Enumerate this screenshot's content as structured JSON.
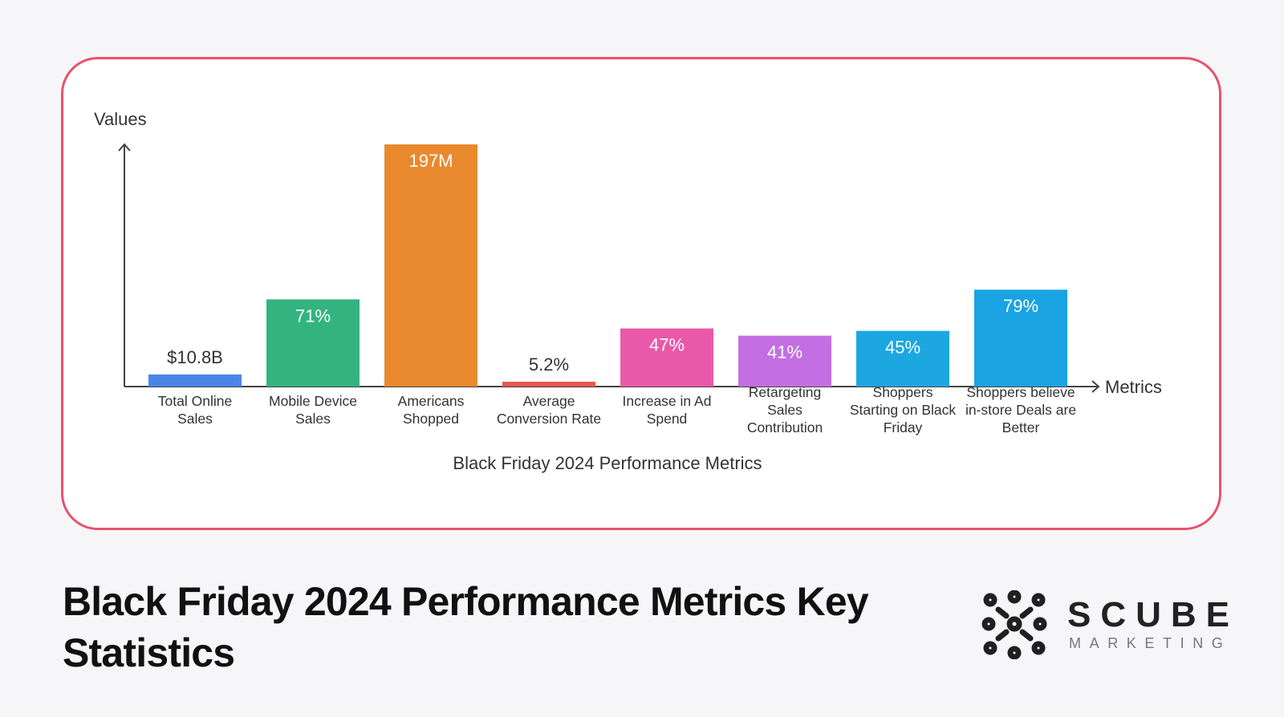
{
  "page": {
    "title": "Black Friday 2024 Performance Metrics Key Statistics"
  },
  "logo": {
    "name": "SCUBE",
    "subtitle": "MARKETING"
  },
  "colors": {
    "border": "#e8526d",
    "axis": "#444444",
    "text": "#333333"
  },
  "chart_data": {
    "type": "bar",
    "title": "Black Friday 2024 Performance Metrics",
    "xlabel": "Metrics",
    "ylabel": "Values",
    "grid": false,
    "legend": "none",
    "bars": [
      {
        "label": [
          "Total Online",
          "Sales"
        ],
        "value_label": "$10.8B",
        "level": 0.05,
        "color": "#4a86e8",
        "label_inside": false
      },
      {
        "label": [
          "Mobile Device",
          "Sales"
        ],
        "value_label": "71%",
        "level": 0.36,
        "color": "#33b47f",
        "label_inside": true
      },
      {
        "label": [
          "Americans",
          "Shopped"
        ],
        "value_label": "197M",
        "level": 1.0,
        "color": "#e9892d",
        "label_inside": true
      },
      {
        "label": [
          "Average",
          "Conversion Rate"
        ],
        "value_label": "5.2%",
        "level": 0.02,
        "color": "#e8574f",
        "label_inside": false
      },
      {
        "label": [
          "Increase in Ad",
          "Spend"
        ],
        "value_label": "47%",
        "level": 0.24,
        "color": "#e959a9",
        "label_inside": true
      },
      {
        "label": [
          "Retargeting",
          "Sales",
          "Contribution"
        ],
        "value_label": "41%",
        "level": 0.21,
        "color": "#c36fe3",
        "label_inside": true
      },
      {
        "label": [
          "Shoppers",
          "Starting on Black",
          "Friday"
        ],
        "value_label": "45%",
        "level": 0.23,
        "color": "#1da7e1",
        "label_inside": true
      },
      {
        "label": [
          "Shoppers believe",
          "in-store Deals are",
          "Better"
        ],
        "value_label": "79%",
        "level": 0.4,
        "color": "#1aa3e2",
        "label_inside": true
      }
    ]
  }
}
